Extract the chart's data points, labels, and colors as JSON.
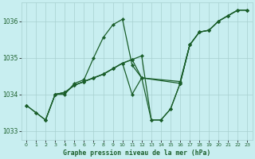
{
  "title": "Graphe pression niveau de la mer (hPa)",
  "background_color": "#c8eef0",
  "grid_color": "#a8d0d0",
  "line_color": "#1a5e2a",
  "xlim": [
    -0.5,
    23.5
  ],
  "ylim": [
    1032.75,
    1036.5
  ],
  "yticks": [
    1033,
    1034,
    1035,
    1036
  ],
  "xticks": [
    0,
    1,
    2,
    3,
    4,
    5,
    6,
    7,
    8,
    9,
    10,
    11,
    12,
    13,
    14,
    15,
    16,
    17,
    18,
    19,
    20,
    21,
    22,
    23
  ],
  "line1_x": [
    0,
    1,
    2,
    3,
    4,
    5,
    6,
    7,
    8,
    9,
    10,
    11,
    12,
    13,
    14,
    15,
    16,
    17
  ],
  "line1_y": [
    1033.7,
    1033.5,
    1033.3,
    1034.0,
    1034.0,
    1034.3,
    1034.4,
    1035.0,
    1035.55,
    1035.9,
    1036.05,
    1034.8,
    1034.45,
    1033.3,
    1033.3,
    1033.6,
    1034.3,
    1035.35
  ],
  "line2_x": [
    0,
    1,
    2,
    3,
    4,
    5,
    6,
    7,
    8,
    9,
    10,
    11,
    12,
    13,
    14,
    15,
    16,
    17,
    18,
    19,
    20,
    21,
    22,
    23
  ],
  "line2_y": [
    1033.7,
    1033.5,
    1033.3,
    1034.0,
    1034.05,
    1034.25,
    1034.35,
    1034.45,
    1034.55,
    1034.7,
    1034.85,
    1034.95,
    1035.05,
    1033.3,
    1033.3,
    1033.6,
    1034.3,
    1035.35,
    1035.7,
    1035.75,
    1036.0,
    1036.15,
    1036.3,
    1036.3
  ],
  "line3_x": [
    2,
    3,
    4,
    5,
    6,
    7,
    8,
    9,
    10,
    11,
    12,
    16,
    17,
    18,
    19,
    20,
    21,
    22,
    23
  ],
  "line3_y": [
    1033.3,
    1034.0,
    1034.05,
    1034.25,
    1034.35,
    1034.45,
    1034.55,
    1034.7,
    1034.85,
    1034.95,
    1034.45,
    1034.3,
    1035.35,
    1035.7,
    1035.75,
    1036.0,
    1036.15,
    1036.3,
    1036.3
  ],
  "line4_x": [
    3,
    4,
    5,
    6,
    7,
    8,
    9,
    10,
    11,
    12,
    16,
    17,
    18,
    19,
    20,
    21,
    22,
    23
  ],
  "line4_y": [
    1034.0,
    1034.05,
    1034.25,
    1034.35,
    1034.45,
    1034.55,
    1034.7,
    1034.85,
    1034.0,
    1034.45,
    1034.35,
    1035.35,
    1035.7,
    1035.75,
    1036.0,
    1036.15,
    1036.3,
    1036.3
  ]
}
